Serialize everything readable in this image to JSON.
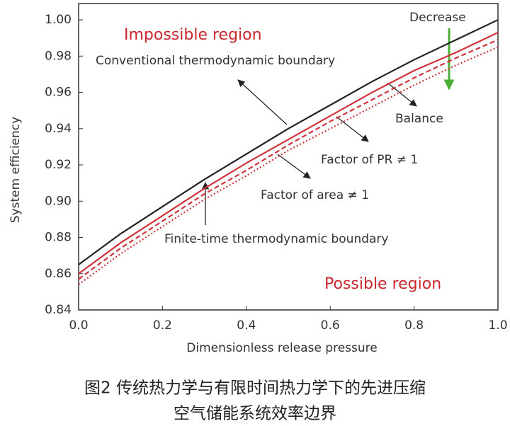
{
  "chart_data": {
    "type": "line",
    "x_label": "Dimensionless release pressure",
    "y_label": "System efficiency",
    "x": [
      0,
      0.1,
      0.2,
      0.3,
      0.4,
      0.5,
      0.6,
      0.7,
      0.8,
      0.9,
      1.0
    ],
    "series": [
      {
        "name": "Conventional thermodynamic boundary",
        "color": "#222222",
        "style": "solid",
        "values": [
          0.865,
          0.882,
          0.897,
          0.912,
          0.926,
          0.94,
          0.953,
          0.966,
          0.978,
          0.989,
          1.0
        ]
      },
      {
        "name": "Balance",
        "color": "#d0343a",
        "style": "solid",
        "values": [
          0.86,
          0.877,
          0.892,
          0.907,
          0.921,
          0.934,
          0.947,
          0.96,
          0.972,
          0.982,
          0.993
        ]
      },
      {
        "name": "Factor of PR ≠ 1",
        "color": "#d0343a",
        "style": "dashed",
        "values": [
          0.857,
          0.874,
          0.889,
          0.904,
          0.917,
          0.931,
          0.944,
          0.956,
          0.968,
          0.979,
          0.989
        ]
      },
      {
        "name": "Factor of area ≠ 1",
        "color": "#d0343a",
        "style": "dotted",
        "values": [
          0.854,
          0.871,
          0.886,
          0.901,
          0.914,
          0.928,
          0.94,
          0.952,
          0.964,
          0.975,
          0.985
        ]
      }
    ],
    "annotations": [
      "Impossible region",
      "Decrease",
      "Finite-time thermodynamic boundary",
      "Possible region"
    ],
    "xlim": [
      0,
      1
    ],
    "xticks": [
      {
        "value": 0,
        "label": "0.0"
      },
      0.2,
      0.4,
      0.6,
      0.8,
      {
        "value": 1,
        "label": "1.0"
      }
    ],
    "ylim": [
      0.84,
      1.009
    ],
    "yticks": [
      0.84,
      0.86,
      0.88,
      {
        "value": 0.9,
        "label": "0.90"
      },
      0.92,
      0.94,
      0.96,
      0.98,
      {
        "value": 1,
        "label": "1.00"
      }
    ],
    "grid": false
  },
  "caption": [
    "图2  传统热力学与有限时间热力学下的先进压缩",
    "空气储能系统效率边界"
  ]
}
